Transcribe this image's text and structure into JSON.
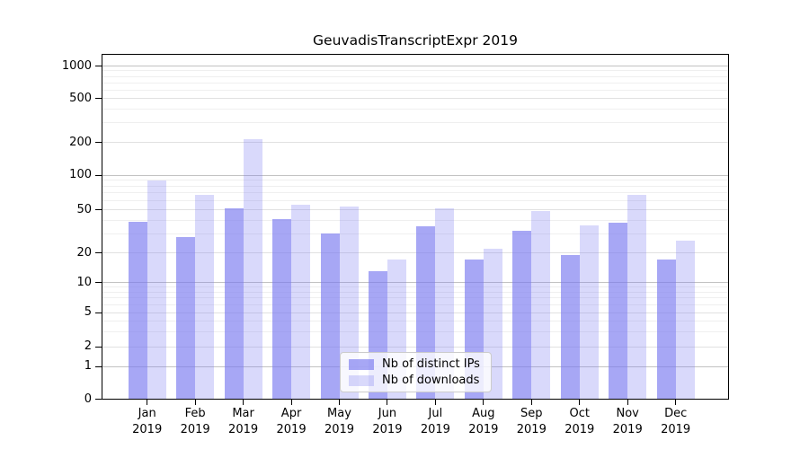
{
  "chart_data": {
    "type": "bar",
    "title": "GeuvadisTranscriptExpr 2019",
    "categories": [
      "Jan 2019",
      "Feb 2019",
      "Mar 2019",
      "Apr 2019",
      "May 2019",
      "Jun 2019",
      "Jul 2019",
      "Aug 2019",
      "Sep 2019",
      "Oct 2019",
      "Nov 2019",
      "Dec 2019"
    ],
    "x_tick_line1": [
      "Jan",
      "Feb",
      "Mar",
      "Apr",
      "May",
      "Jun",
      "Jul",
      "Aug",
      "Sep",
      "Oct",
      "Nov",
      "Dec"
    ],
    "x_tick_line2": "2019",
    "series": [
      {
        "name": "Nb of distinct IPs",
        "color": "#7878f0",
        "alpha": 0.65,
        "values": [
          39,
          28,
          51,
          41,
          30,
          13,
          35,
          17,
          32,
          19,
          38,
          17
        ]
      },
      {
        "name": "Nb of downloads",
        "color": "#7878f0",
        "alpha": 0.28,
        "values": [
          90,
          67,
          212,
          55,
          53,
          17,
          51,
          22,
          49,
          36,
          67,
          26
        ]
      }
    ],
    "y_axis": {
      "scale": "log-like with 0 baseline",
      "ticks": [
        0,
        1,
        2,
        5,
        10,
        20,
        50,
        100,
        200,
        500,
        1000
      ]
    },
    "x_axis": {
      "label": ""
    },
    "grid": true,
    "legend": {
      "position": "lower center",
      "entries": [
        "Nb of distinct IPs",
        "Nb of downloads"
      ]
    }
  },
  "colors": {
    "bar_base": "#7878f0",
    "bar_ips_solid": "#a7a7f5",
    "bar_downloads_solid": "#d9d9fa",
    "grid_major": "#c2c2c2",
    "grid_labeled": "#e1e1e1",
    "grid_minor": "#efefef",
    "axis": "#000000",
    "text": "#000000",
    "legend_border": "#cccccc",
    "legend_bg": "#ffffff"
  }
}
